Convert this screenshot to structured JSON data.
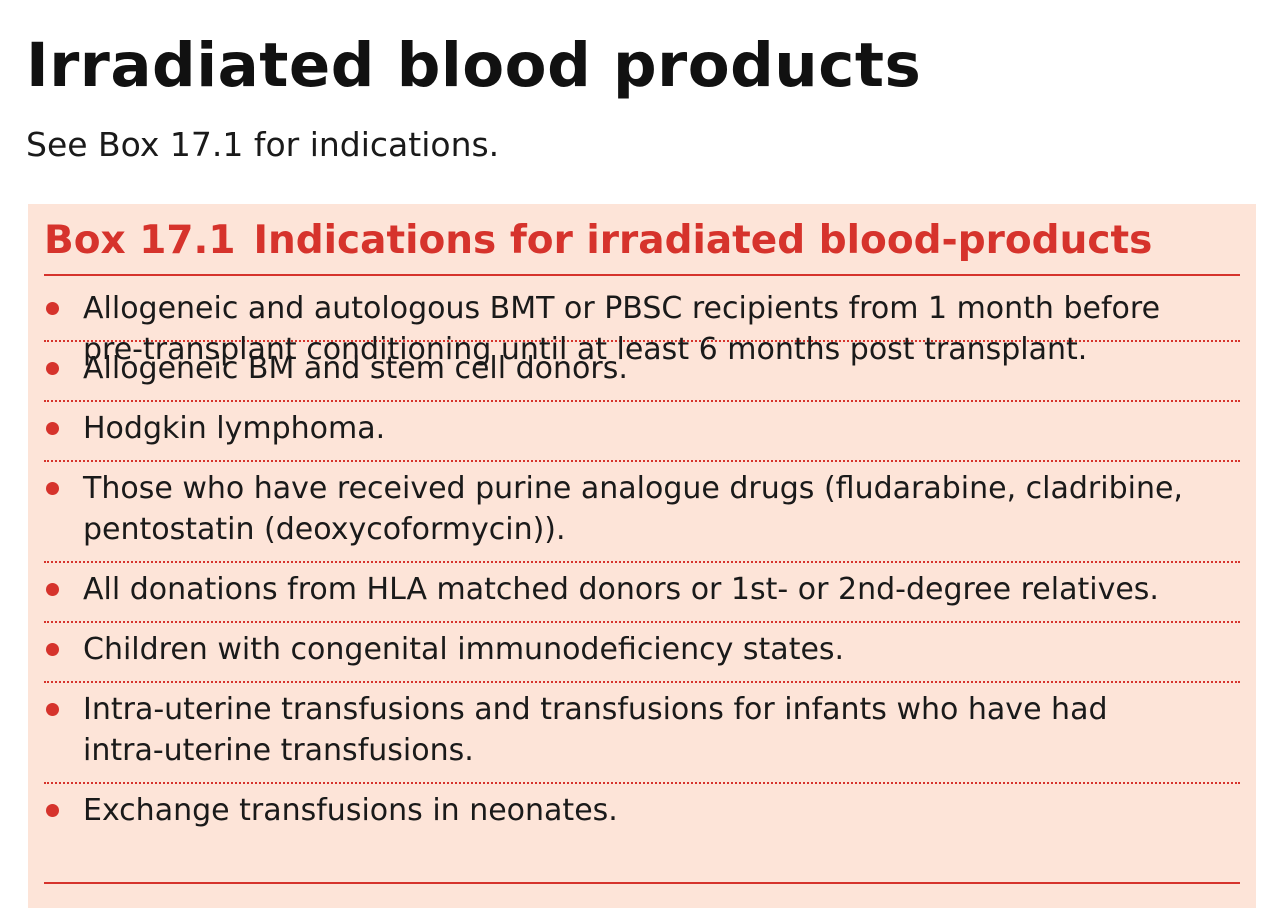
{
  "page": {
    "title": "Irradiated blood products",
    "intro": "See Box 17.1 for indications."
  },
  "box": {
    "number": "Box 17.1",
    "heading": "Indications for irradiated blood-products",
    "items": [
      "Allogeneic and autologous BMT or PBSC recipients from 1 month before pre-transplant conditioning until at least 6 months post transplant.",
      "Allogeneic BM and stem cell donors.",
      "Hodgkin lymphoma.",
      "Those who have received purine analogue drugs (fludarabine, cladribine, pentostatin (deoxycoformycin)).",
      "All donations from HLA matched donors or 1st- or 2nd-degree relatives.",
      "Children with congenital immunodeficiency states.",
      "Intra-uterine transfusions and transfusions for infants who have had intra-uterine transfusions.",
      "Exchange transfusions in neonates."
    ]
  },
  "colors": {
    "accent": "#d6332c",
    "box_background": "#fde4d8",
    "text": "#1a1a1a"
  }
}
